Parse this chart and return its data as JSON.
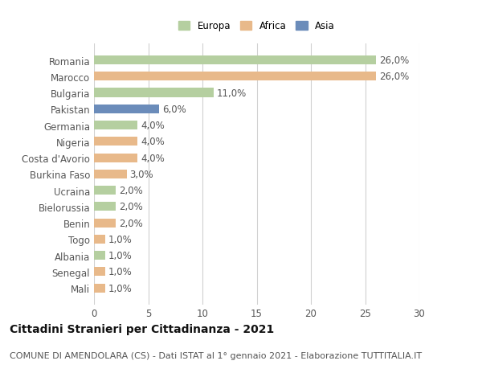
{
  "categories": [
    "Romania",
    "Marocco",
    "Bulgaria",
    "Pakistan",
    "Germania",
    "Nigeria",
    "Costa d'Avorio",
    "Burkina Faso",
    "Ucraina",
    "Bielorussia",
    "Benin",
    "Togo",
    "Albania",
    "Senegal",
    "Mali"
  ],
  "values": [
    26.0,
    26.0,
    11.0,
    6.0,
    4.0,
    4.0,
    4.0,
    3.0,
    2.0,
    2.0,
    2.0,
    1.0,
    1.0,
    1.0,
    1.0
  ],
  "continents": [
    "Europa",
    "Africa",
    "Europa",
    "Asia",
    "Europa",
    "Africa",
    "Africa",
    "Africa",
    "Europa",
    "Europa",
    "Africa",
    "Africa",
    "Europa",
    "Africa",
    "Africa"
  ],
  "colors": {
    "Europa": "#b5cfa0",
    "Africa": "#e8b98a",
    "Asia": "#6b8cba"
  },
  "legend_labels": [
    "Europa",
    "Africa",
    "Asia"
  ],
  "title": "Cittadini Stranieri per Cittadinanza - 2021",
  "subtitle": "COMUNE DI AMENDOLARA (CS) - Dati ISTAT al 1° gennaio 2021 - Elaborazione TUTTITALIA.IT",
  "xlim": [
    0,
    30
  ],
  "xticks": [
    0,
    5,
    10,
    15,
    20,
    25,
    30
  ],
  "background_color": "#ffffff",
  "grid_color": "#d0d0d0",
  "bar_height": 0.55,
  "title_fontsize": 10,
  "subtitle_fontsize": 8,
  "label_fontsize": 8.5,
  "tick_fontsize": 8.5,
  "value_fontsize": 8.5
}
